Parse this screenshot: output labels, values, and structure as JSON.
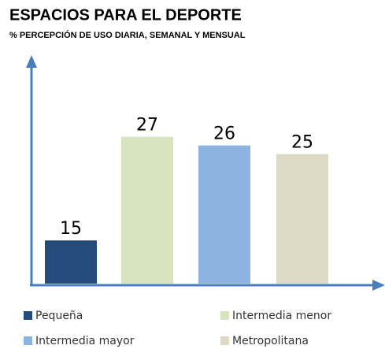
{
  "chart_data": {
    "type": "bar",
    "title": "ESPACIOS PARA EL DEPORTE",
    "subtitle": "% PERCEPCIÓN DE USO DIARIA, SEMANAL Y MENSUAL",
    "ylim": [
      10,
      36
    ],
    "series": [
      {
        "name": "Pequeña",
        "color": "#254a7c",
        "values": [
          15
        ]
      },
      {
        "name": "Intermedia menor",
        "color": "#d7e4bd",
        "values": [
          27
        ]
      },
      {
        "name": "Intermedia mayor",
        "color": "#8db3e2",
        "values": [
          26
        ]
      },
      {
        "name": "Metropolitana",
        "color": "#ddd9c3",
        "values": [
          25
        ]
      }
    ]
  }
}
